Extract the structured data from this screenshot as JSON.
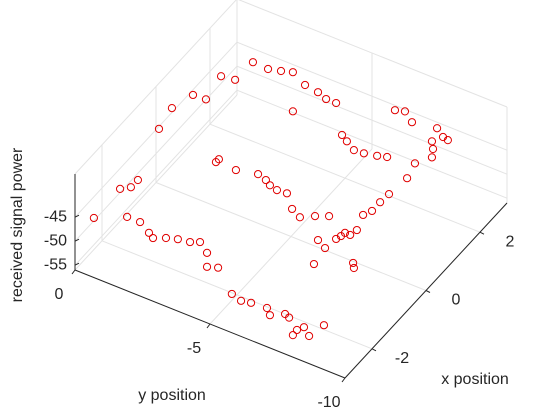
{
  "chart_data": {
    "type": "scatter3",
    "x_label": "x position",
    "y_label": "y position",
    "z_label": "received signal power",
    "color": "#e00000",
    "xlim": [
      -3,
      3
    ],
    "ylim": [
      -10,
      0
    ],
    "zlim": [
      -56,
      -36
    ],
    "xticks": [
      -2,
      0,
      2
    ],
    "yticks": [
      -10,
      -5,
      0
    ],
    "zticks": [
      -55,
      -50,
      -45
    ],
    "grid": true,
    "x": [
      3.26,
      3.24,
      3.32,
      3.41,
      3.21,
      3.16,
      3.07,
      3.07,
      2.43,
      2.59,
      2.64,
      1.86,
      1.84,
      1.3,
      0.65,
      -2.23,
      -1.24,
      -1.09,
      -0.84,
      -1.87,
      -1.87,
      -2.05,
      -2.14,
      -2.01,
      -1.92,
      -1.87,
      -1.77,
      -1.97,
      -2.32,
      -2.23,
      0.39,
      0.49,
      0.39,
      0.51,
      0.44,
      0.35,
      0.3,
      0.32,
      -0.02,
      -0.15,
      0.03,
      0.17,
      2.33,
      2.22,
      2.07,
      2.09,
      2.16,
      2.23,
      3.48,
      3.55,
      3.35,
      3.07,
      3.45,
      3.29,
      3.26,
      2.89,
      2.67,
      2.35,
      1.9,
      1.32,
      1.03,
      0.73,
      0.54,
      0.1,
      -0.09,
      -0.09,
      -0.21,
      -0.33,
      -0.54,
      -0.67,
      -1.18,
      -0.76,
      -0.88,
      -2.75,
      -2.83,
      -2.78,
      -2.75,
      -2.9,
      -2.72,
      -2.77,
      -3.0,
      -3.17,
      -2.86,
      -3.03,
      -2.61
    ],
    "y": [
      -0.33,
      -0.91,
      -1.31,
      -1.66,
      -2.31,
      -2.84,
      -3.23,
      -3.6,
      -2.64,
      0.18,
      -0.29,
      0.01,
      0.47,
      0.71,
      0.54,
      0.07,
      0.09,
      -0.16,
      -0.17,
      -0.8,
      -1.28,
      -1.79,
      -2.03,
      -2.38,
      -2.73,
      -3.13,
      -3.4,
      -3.86,
      -4.21,
      -4.53,
      -1.83,
      -1.84,
      -2.57,
      -3.27,
      -3.63,
      -3.87,
      -4.18,
      -4.53,
      -5.06,
      -5.48,
      -5.86,
      -6.24,
      -4.56,
      -4.85,
      -5.26,
      -5.61,
      -6.03,
      -6.33,
      -5.37,
      -5.67,
      -6.13,
      -7.15,
      -6.96,
      -7.34,
      -7.55,
      -7.37,
      -7.55,
      -7.24,
      -7.4,
      -7.31,
      -7.27,
      -7.27,
      -7.13,
      -7.34,
      -7.28,
      -7.09,
      -7.06,
      -7.0,
      -6.54,
      -6.93,
      -7.03,
      -8.06,
      -8.21,
      -5.56,
      -5.98,
      -6.3,
      -6.86,
      -7.12,
      -7.5,
      -7.7,
      -8.22,
      -8.24,
      -8.34,
      -8.7,
      -8.83
    ],
    "z": [
      -50,
      -50,
      -50,
      -50,
      -50,
      -50,
      -50,
      -50,
      -50,
      -50,
      -50,
      -50,
      -50,
      -50,
      -50,
      -50,
      -50,
      -50,
      -50,
      -50,
      -50,
      -50,
      -50,
      -50,
      -50,
      -50,
      -50,
      -50,
      -50,
      -50,
      -50,
      -50,
      -50,
      -50,
      -50,
      -50,
      -50,
      -50,
      -50,
      -50,
      -50,
      -50,
      -50,
      -50,
      -50,
      -50,
      -50,
      -50,
      -50,
      -50,
      -50,
      -50,
      -50,
      -50,
      -50,
      -50,
      -50,
      -50,
      -50,
      -50,
      -50,
      -50,
      -50,
      -50,
      -50,
      -50,
      -50,
      -50,
      -50,
      -50,
      -50,
      -50,
      -50,
      -50,
      -50,
      -50,
      -50,
      -50,
      -50,
      -50,
      -50,
      -50,
      -50,
      -50,
      -50
    ]
  }
}
